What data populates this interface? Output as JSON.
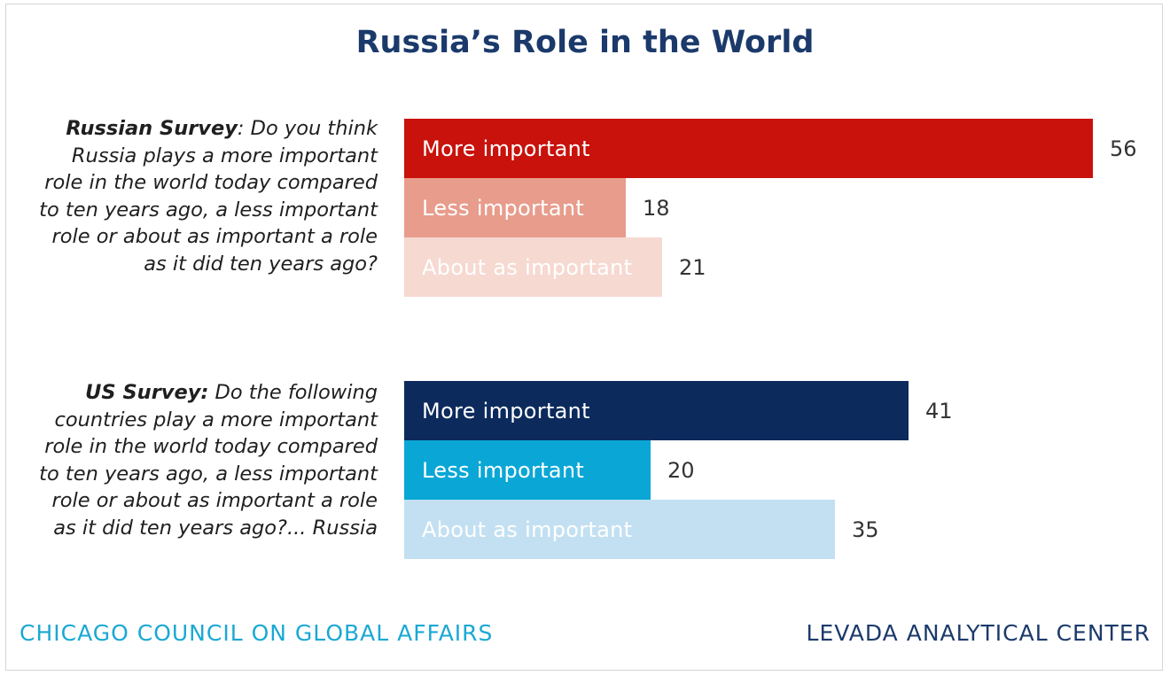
{
  "title": "Russia’s Role in the World",
  "colors": {
    "title": "#1b3a6b",
    "russia_more": "#c8120b",
    "russia_less": "#e89c8c",
    "russia_same": "#f6d9d1",
    "us_more": "#0c2a5c",
    "us_less": "#0aa7d6",
    "us_same": "#c3e0f2",
    "footer_left": "#1aa8d4",
    "footer_right": "#1b3a6b"
  },
  "chart_data": {
    "type": "bar",
    "orientation": "horizontal",
    "title": "Russia’s Role in the World",
    "xlim": [
      0,
      56
    ],
    "groups": [
      {
        "key": "russia",
        "question_lead": "Russian Survey",
        "question_rest": ": Do you think Russia plays a more important role in the world today compared to ten years ago, a less important role or about as important a role as it did ten years ago?",
        "categories": [
          "More important",
          "Less important",
          "About as important"
        ],
        "values": [
          56,
          18,
          21
        ],
        "colors": [
          "#c8120b",
          "#e89c8c",
          "#f6d9d1"
        ]
      },
      {
        "key": "us",
        "question_lead": "US Survey:",
        "question_rest": " Do the following countries play a more important role in the world today compared to ten years ago, a less important role or about as important a role as it did ten years ago?... Russia",
        "categories": [
          "More important",
          "Less important",
          "About as important"
        ],
        "values": [
          41,
          20,
          35
        ],
        "colors": [
          "#0c2a5c",
          "#0aa7d6",
          "#c3e0f2"
        ]
      }
    ]
  },
  "footer": {
    "left": "CHICAGO COUNCIL ON GLOBAL AFFAIRS",
    "right": "LEVADA ANALYTICAL CENTER"
  }
}
